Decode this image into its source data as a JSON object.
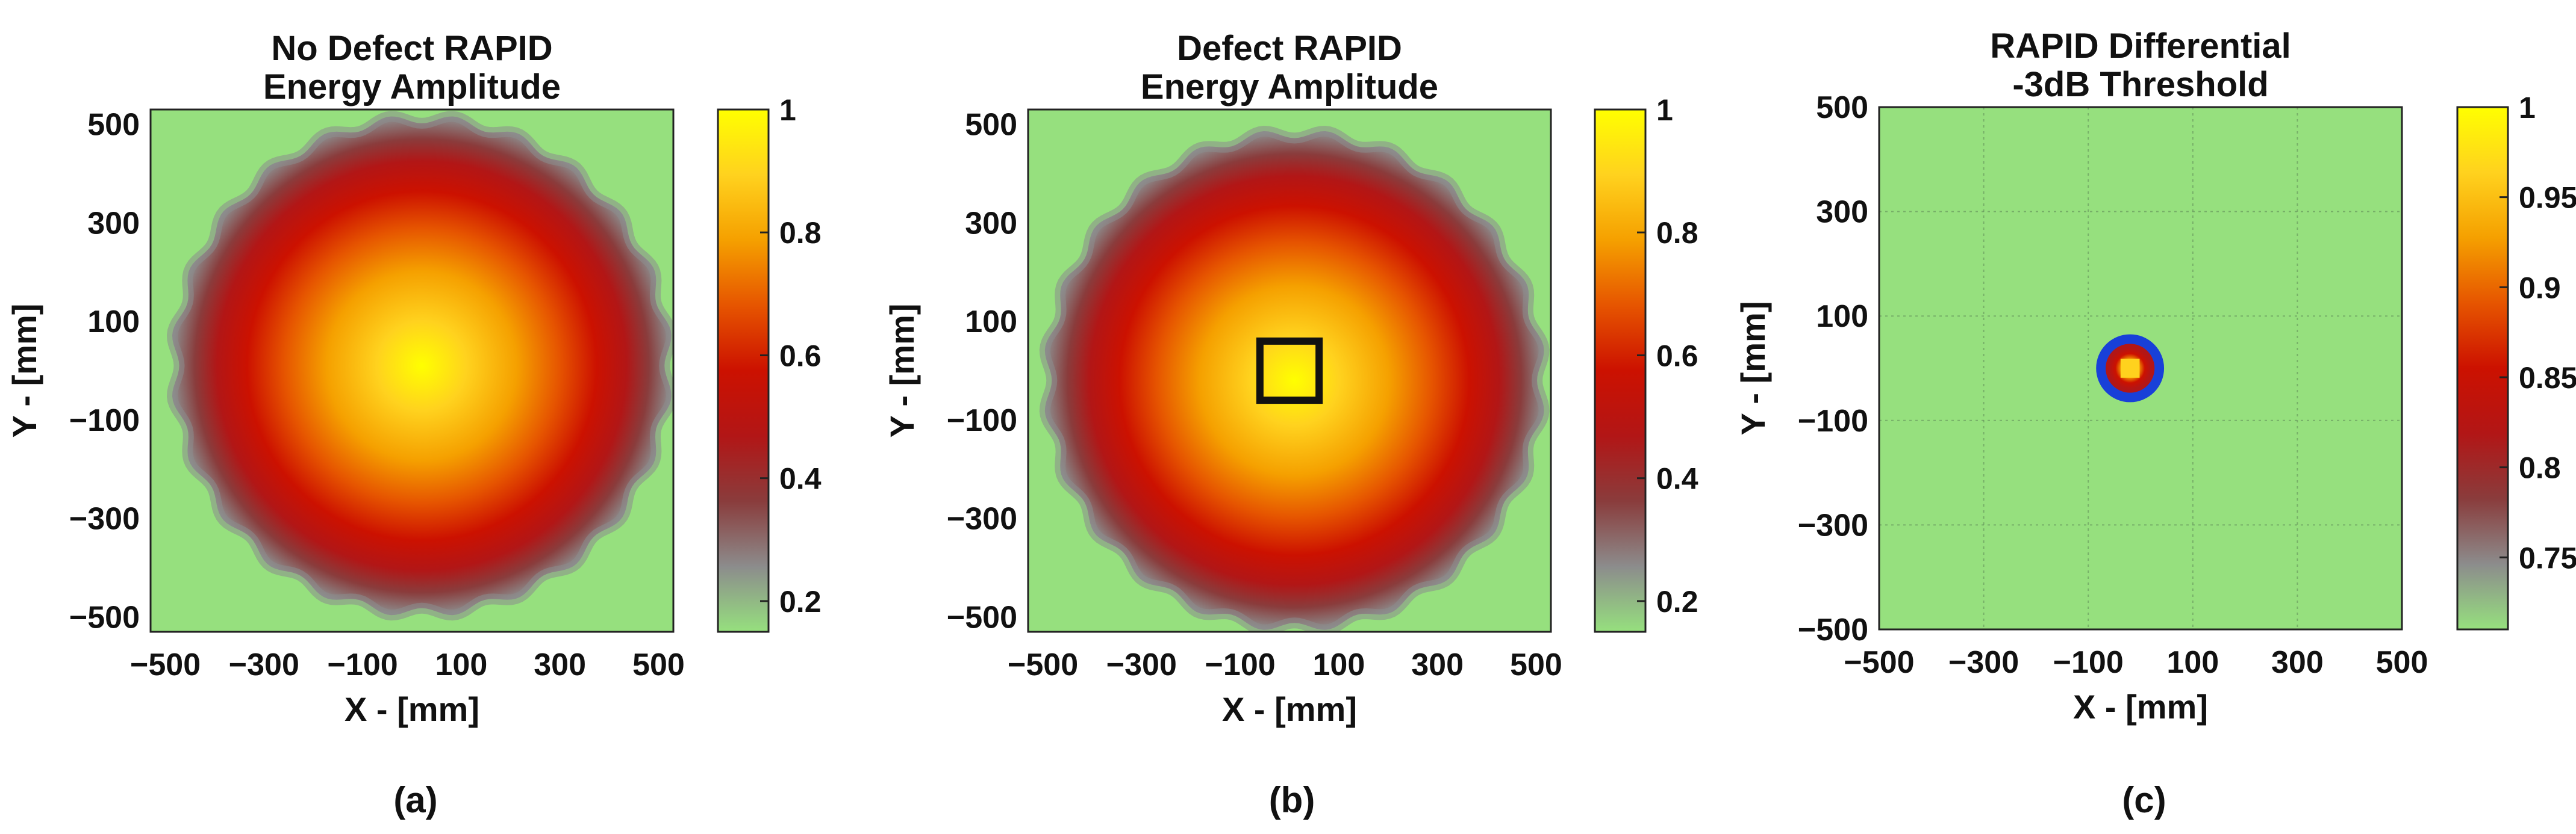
{
  "colors": {
    "background": "#96e07e",
    "colormap": [
      "#96e07e",
      "#8c8c8c",
      "#8a3c3c",
      "#b21616",
      "#cc1100",
      "#e65500",
      "#f5a000",
      "#ffd21e",
      "#ffff00"
    ],
    "defect_box": "#111111",
    "differential_ring": "#1840d8"
  },
  "chart_data": [
    {
      "type": "heatmap",
      "panel_label": "(a)",
      "title": [
        "No Defect RAPID",
        "Energy Amplitude"
      ],
      "xlabel": "X - [mm]",
      "ylabel": "Y - [mm]",
      "xlim": [
        -530,
        530
      ],
      "ylim": [
        -530,
        530
      ],
      "xticks": [
        -500,
        -300,
        -100,
        100,
        300,
        500
      ],
      "yticks": [
        500,
        300,
        100,
        -100,
        -300,
        -500
      ],
      "grid": false,
      "field": {
        "kind": "disk",
        "center": [
          20,
          10
        ],
        "radius": 510,
        "peak": 1.0,
        "edge_ripple": 18,
        "ripple_count": 24
      },
      "colorbar": {
        "range": [
          0.15,
          1.0
        ],
        "ticks": [
          1,
          0.8,
          0.6,
          0.4,
          0.2
        ]
      }
    },
    {
      "type": "heatmap",
      "panel_label": "(b)",
      "title": [
        "Defect RAPID",
        "Energy Amplitude"
      ],
      "xlabel": "X - [mm]",
      "ylabel": "Y - [mm]",
      "xlim": [
        -530,
        530
      ],
      "ylim": [
        -530,
        530
      ],
      "xticks": [
        -500,
        -300,
        -100,
        100,
        300,
        500
      ],
      "yticks": [
        500,
        300,
        100,
        -100,
        -300,
        -500
      ],
      "grid": false,
      "field": {
        "kind": "disk",
        "center": [
          10,
          -20
        ],
        "radius": 510,
        "peak": 1.0,
        "edge_ripple": 18,
        "ripple_count": 24
      },
      "defect": {
        "x": [
          -60,
          60
        ],
        "y": [
          -60,
          60
        ]
      },
      "colorbar": {
        "range": [
          0.15,
          1.0
        ],
        "ticks": [
          1,
          0.8,
          0.6,
          0.4,
          0.2
        ]
      }
    },
    {
      "type": "heatmap",
      "panel_label": "(c)",
      "title": [
        "RAPID Differential",
        "-3dB Threshold"
      ],
      "xlabel": "X - [mm]",
      "ylabel": "Y - [mm]",
      "xlim": [
        -500,
        500
      ],
      "ylim": [
        -500,
        500
      ],
      "xticks": [
        -500,
        -300,
        -100,
        100,
        300,
        500
      ],
      "yticks": [
        500,
        300,
        100,
        -100,
        -300,
        -500
      ],
      "grid": true,
      "spot": {
        "center": [
          -20,
          0
        ],
        "radius": 65
      },
      "colorbar": {
        "range": [
          0.71,
          1.0
        ],
        "ticks": [
          1,
          0.95,
          0.9,
          0.85,
          0.8,
          0.75
        ]
      }
    }
  ]
}
